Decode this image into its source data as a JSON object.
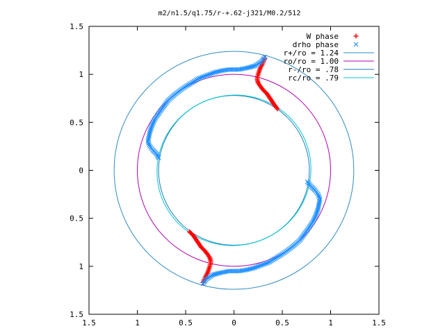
{
  "chart_data": {
    "type": "scatter",
    "title": "m2/n1.5/q1.75/r-+.62-j321/M0.2/512",
    "xlim": [
      -1.5,
      1.5
    ],
    "ylim": [
      -1.5,
      1.5
    ],
    "xticks": [
      -1.5,
      -1,
      -0.5,
      0,
      0.5,
      1,
      1.5
    ],
    "xtick_labels": [
      "1.5",
      "1",
      "0.5",
      "0",
      "0.5",
      "1",
      "1.5"
    ],
    "yticks": [
      1.5,
      1,
      0.5,
      0,
      -0.5,
      -1,
      -1.5
    ],
    "ytick_labels": [
      "1.5",
      "1",
      "0.5",
      "0",
      "0.5",
      "1",
      "1.5"
    ],
    "grid": false,
    "legend_position": "top-right",
    "legend": [
      {
        "label": "W phase",
        "marker": "plus",
        "color": "#ff0000"
      },
      {
        "label": "drho phase",
        "marker": "cross",
        "color": "#1e90ff"
      },
      {
        "label": "r+/ro = 1.24",
        "line": true,
        "color": "#2e8bc0"
      },
      {
        "label": "ro/ro = 1.00",
        "line": true,
        "color": "#b000b0"
      },
      {
        "label": "r-/ro = .78",
        "line": true,
        "color": "#1f7ab8"
      },
      {
        "label": "rc/ro = .79",
        "line": true,
        "color": "#00c8d0"
      }
    ],
    "circles": [
      {
        "name": "r+/ro",
        "r": 1.24,
        "color": "#2e8bc0"
      },
      {
        "name": "ro/ro",
        "r": 1.0,
        "color": "#b000b0"
      },
      {
        "name": "r-/ro",
        "r": 0.78,
        "color": "#1f7ab8"
      },
      {
        "name": "rc/ro",
        "r": 0.79,
        "color": "#00c8d0",
        "wobble": true
      }
    ],
    "series": [
      {
        "name": "W phase",
        "marker": "plus",
        "color": "#ff0000",
        "arms": [
          {
            "points": [
              [
                0.32,
                1.17
              ],
              [
                0.3,
                1.12
              ],
              [
                0.27,
                1.06
              ],
              [
                0.25,
                1.0
              ],
              [
                0.24,
                0.95
              ],
              [
                0.25,
                0.91
              ],
              [
                0.27,
                0.88
              ],
              [
                0.3,
                0.84
              ],
              [
                0.34,
                0.8
              ],
              [
                0.38,
                0.74
              ],
              [
                0.42,
                0.68
              ],
              [
                0.45,
                0.64
              ]
            ]
          },
          {
            "points": [
              [
                -0.46,
                -0.64
              ],
              [
                -0.42,
                -0.68
              ],
              [
                -0.38,
                -0.74
              ],
              [
                -0.34,
                -0.8
              ],
              [
                -0.3,
                -0.84
              ],
              [
                -0.27,
                -0.88
              ],
              [
                -0.25,
                -0.91
              ],
              [
                -0.24,
                -0.95
              ],
              [
                -0.25,
                -1.0
              ],
              [
                -0.27,
                -1.06
              ],
              [
                -0.3,
                -1.12
              ],
              [
                -0.32,
                -1.17
              ]
            ]
          }
        ]
      },
      {
        "name": "drho phase",
        "marker": "cross",
        "color": "#1e90ff",
        "arms": [
          {
            "points": [
              [
                0.32,
                1.18
              ],
              [
                0.28,
                1.13
              ],
              [
                0.22,
                1.09
              ],
              [
                0.15,
                1.07
              ],
              [
                0.1,
                1.06
              ],
              [
                0.05,
                1.05
              ],
              [
                0.0,
                1.05
              ],
              [
                -0.05,
                1.05
              ],
              [
                -0.12,
                1.04
              ],
              [
                -0.2,
                1.02
              ],
              [
                -0.28,
                0.99
              ],
              [
                -0.36,
                0.96
              ],
              [
                -0.44,
                0.91
              ],
              [
                -0.52,
                0.86
              ],
              [
                -0.6,
                0.8
              ],
              [
                -0.68,
                0.73
              ],
              [
                -0.76,
                0.62
              ],
              [
                -0.82,
                0.53
              ],
              [
                -0.85,
                0.46
              ],
              [
                -0.87,
                0.4
              ],
              [
                -0.88,
                0.35
              ],
              [
                -0.89,
                0.3
              ],
              [
                -0.87,
                0.25
              ],
              [
                -0.84,
                0.21
              ],
              [
                -0.8,
                0.17
              ],
              [
                -0.78,
                0.13
              ]
            ]
          },
          {
            "points": [
              [
                0.76,
                -0.12
              ],
              [
                0.8,
                -0.17
              ],
              [
                0.84,
                -0.21
              ],
              [
                0.87,
                -0.25
              ],
              [
                0.89,
                -0.3
              ],
              [
                0.88,
                -0.35
              ],
              [
                0.87,
                -0.4
              ],
              [
                0.85,
                -0.46
              ],
              [
                0.82,
                -0.53
              ],
              [
                0.76,
                -0.62
              ],
              [
                0.68,
                -0.73
              ],
              [
                0.6,
                -0.8
              ],
              [
                0.52,
                -0.86
              ],
              [
                0.44,
                -0.91
              ],
              [
                0.36,
                -0.96
              ],
              [
                0.28,
                -0.99
              ],
              [
                0.2,
                -1.02
              ],
              [
                0.12,
                -1.04
              ],
              [
                0.05,
                -1.05
              ],
              [
                0.0,
                -1.05
              ],
              [
                -0.05,
                -1.05
              ],
              [
                -0.1,
                -1.06
              ],
              [
                -0.15,
                -1.07
              ],
              [
                -0.22,
                -1.09
              ],
              [
                -0.28,
                -1.13
              ],
              [
                -0.32,
                -1.18
              ]
            ]
          }
        ]
      }
    ]
  }
}
